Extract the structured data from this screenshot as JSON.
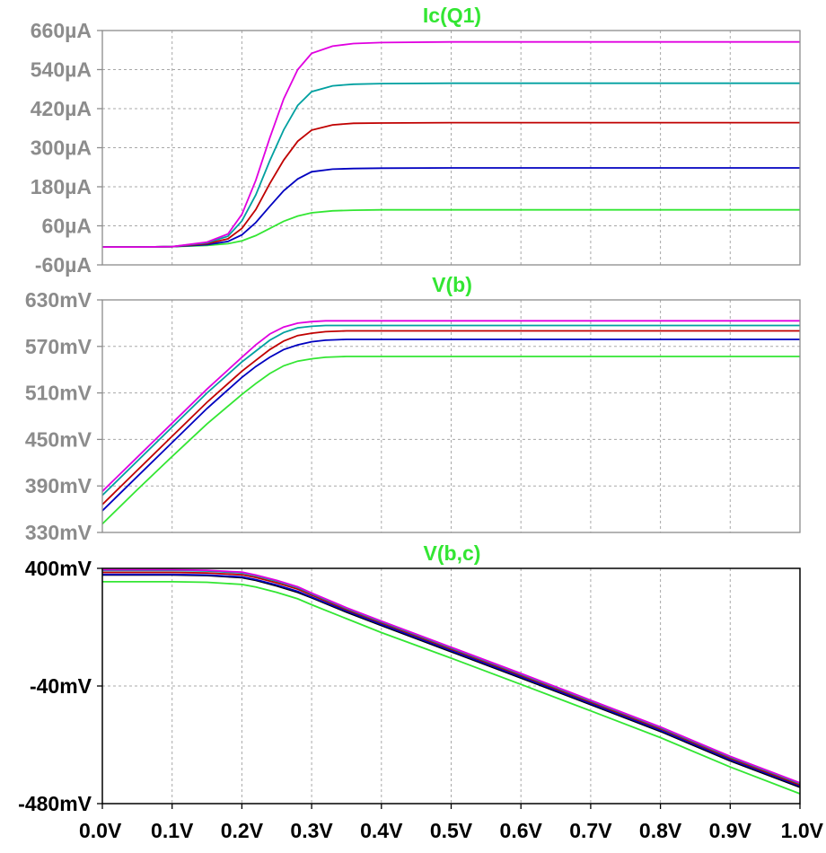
{
  "chart_data": [
    {
      "type": "line",
      "title": "Ic(Q1)",
      "ylim": [
        -60,
        660
      ],
      "y_unit": "µA",
      "y_ticks": [
        "660µA",
        "540µA",
        "420µA",
        "300µA",
        "180µA",
        "60µA",
        "-60µA"
      ],
      "y_tick_values": [
        660,
        540,
        420,
        300,
        180,
        60,
        -60
      ],
      "xlim": [
        0,
        1
      ],
      "grid": true,
      "active": false,
      "x": [
        0,
        0.05,
        0.1,
        0.15,
        0.18,
        0.2,
        0.22,
        0.24,
        0.26,
        0.28,
        0.3,
        0.33,
        0.36,
        0.4,
        0.5,
        0.6,
        0.7,
        0.8,
        0.9,
        1.0
      ],
      "series": [
        {
          "color": "#33e633",
          "values": [
            -5,
            -5,
            -4,
            0,
            5,
            14,
            30,
            52,
            74,
            90,
            100,
            106,
            108,
            109,
            109,
            109,
            109,
            109,
            109,
            109
          ]
        },
        {
          "color": "#0000c0",
          "values": [
            -5,
            -5,
            -4,
            2,
            12,
            32,
            70,
            120,
            168,
            204,
            226,
            234,
            236,
            237,
            238,
            238,
            238,
            238,
            238,
            238
          ]
        },
        {
          "color": "#c00000",
          "values": [
            -5,
            -5,
            -4,
            5,
            20,
            52,
            110,
            190,
            262,
            320,
            354,
            370,
            375,
            376,
            377,
            377,
            377,
            377,
            377,
            377
          ]
        },
        {
          "color": "#00a0a0",
          "values": [
            -5,
            -5,
            -4,
            8,
            28,
            75,
            155,
            260,
            355,
            430,
            472,
            490,
            495,
            497,
            498,
            498,
            498,
            498,
            498,
            498
          ]
        },
        {
          "color": "#e000e0",
          "values": [
            -5,
            -5,
            -4,
            10,
            35,
            95,
            200,
            330,
            450,
            540,
            590,
            612,
            620,
            623,
            625,
            625,
            625,
            625,
            625,
            625
          ]
        }
      ]
    },
    {
      "type": "line",
      "title": "V(b)",
      "ylim": [
        330,
        630
      ],
      "y_unit": "mV",
      "y_ticks": [
        "630mV",
        "570mV",
        "510mV",
        "450mV",
        "390mV",
        "330mV"
      ],
      "y_tick_values": [
        630,
        570,
        510,
        450,
        390,
        330
      ],
      "xlim": [
        0,
        1
      ],
      "grid": true,
      "active": false,
      "x": [
        0,
        0.05,
        0.1,
        0.15,
        0.2,
        0.22,
        0.24,
        0.26,
        0.28,
        0.3,
        0.32,
        0.35,
        0.4,
        0.5,
        0.6,
        0.7,
        0.8,
        0.9,
        1.0
      ],
      "series": [
        {
          "color": "#33e633",
          "values": [
            341,
            385,
            428,
            470,
            508,
            522,
            535,
            545,
            551,
            554,
            556,
            557,
            557,
            557,
            557,
            557,
            557,
            557,
            557
          ]
        },
        {
          "color": "#0000c0",
          "values": [
            358,
            402,
            446,
            490,
            530,
            544,
            556,
            566,
            572,
            576,
            578,
            579,
            579,
            579,
            579,
            579,
            579,
            579,
            579
          ]
        },
        {
          "color": "#c00000",
          "values": [
            366,
            410,
            454,
            498,
            538,
            552,
            566,
            577,
            584,
            587,
            589,
            590,
            590,
            590,
            590,
            590,
            590,
            590,
            590
          ]
        },
        {
          "color": "#00a0a0",
          "values": [
            378,
            422,
            466,
            510,
            550,
            564,
            578,
            588,
            594,
            596,
            597,
            597,
            597,
            597,
            597,
            597,
            597,
            597,
            597
          ]
        },
        {
          "color": "#e000e0",
          "values": [
            383,
            427,
            471,
            515,
            556,
            572,
            586,
            595,
            600,
            602,
            603,
            603,
            603,
            603,
            603,
            603,
            603,
            603,
            603
          ]
        }
      ]
    },
    {
      "type": "line",
      "title": "V(b,c)",
      "ylim": [
        -480,
        400
      ],
      "y_unit": "mV",
      "y_ticks": [
        "400mV",
        "-40mV",
        "-480mV"
      ],
      "y_tick_values": [
        400,
        -40,
        -480
      ],
      "xlim": [
        0,
        1
      ],
      "x_ticks": [
        "0.0V",
        "0.1V",
        "0.2V",
        "0.3V",
        "0.4V",
        "0.5V",
        "0.6V",
        "0.7V",
        "0.8V",
        "0.9V",
        "1.0V"
      ],
      "x_tick_values": [
        0,
        0.1,
        0.2,
        0.3,
        0.4,
        0.5,
        0.6,
        0.7,
        0.8,
        0.9,
        1.0
      ],
      "grid": true,
      "active": true,
      "x": [
        0,
        0.1,
        0.15,
        0.2,
        0.22,
        0.25,
        0.28,
        0.3,
        0.35,
        0.4,
        0.5,
        0.6,
        0.7,
        0.8,
        0.9,
        1.0
      ],
      "series": [
        {
          "color": "#33e633",
          "values": [
            350,
            350,
            348,
            340,
            330,
            310,
            286,
            264,
            212,
            160,
            64,
            -34,
            -133,
            -233,
            -343,
            -443
          ]
        },
        {
          "color": "#000000",
          "values": [
            375,
            375,
            373,
            365,
            355,
            334,
            310,
            290,
            236,
            186,
            88,
            -10,
            -110,
            -210,
            -320,
            -419
          ]
        },
        {
          "color": "#0000c0",
          "values": [
            377,
            377,
            375,
            368,
            358,
            338,
            314,
            293,
            240,
            190,
            92,
            -6,
            -106,
            -206,
            -316,
            -415
          ]
        },
        {
          "color": "#c00000",
          "values": [
            385,
            385,
            383,
            376,
            366,
            346,
            322,
            300,
            246,
            196,
            98,
            0,
            -100,
            -200,
            -310,
            -410
          ]
        },
        {
          "color": "#00a0a0",
          "values": [
            392,
            392,
            390,
            383,
            372,
            352,
            328,
            305,
            250,
            200,
            102,
            4,
            -96,
            -196,
            -306,
            -405
          ]
        },
        {
          "color": "#e000e0",
          "values": [
            395,
            395,
            393,
            386,
            375,
            355,
            331,
            308,
            253,
            203,
            105,
            7,
            -93,
            -193,
            -303,
            -402
          ]
        }
      ]
    }
  ]
}
